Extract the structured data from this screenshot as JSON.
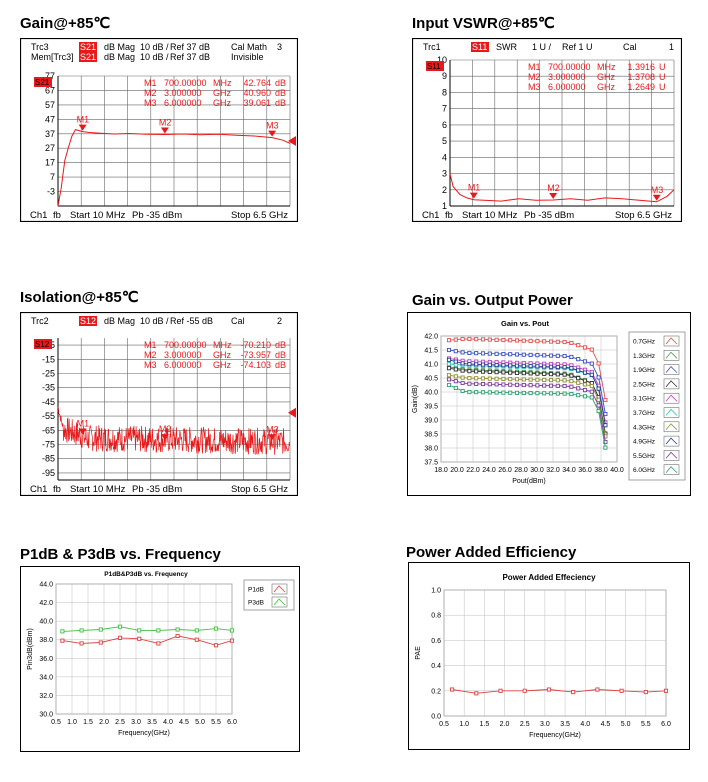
{
  "page_titles": {
    "gain": "Gain@+85℃",
    "vswr": "Input VSWR@+85℃",
    "iso": "Isolation@+85℃",
    "gvp": "Gain vs. Output Power",
    "p1db": "P1dB & P3dB vs. Frequency",
    "pae": "Power Added Efficiency"
  },
  "chart_data": [
    {
      "id": "gain",
      "type": "line",
      "header": [
        {
          "a": "Trc3",
          "b": "S21",
          "c": "dB Mag",
          "d": "10 dB /",
          "e": "Ref 37 dB",
          "f": "Cal Math",
          "g": "3"
        },
        {
          "a": "Mem[Trc3]",
          "b": "S21",
          "c": "dB Mag",
          "d": "10 dB /",
          "e": "Ref 37 dB",
          "f": "Invisible",
          "g": ""
        }
      ],
      "trace_label": "S21",
      "yticks": [
        "77",
        "67",
        "57",
        "47",
        "37",
        "27",
        "17",
        "7",
        "-3"
      ],
      "ylim": [
        -3,
        77
      ],
      "markers": [
        {
          "name": "M1",
          "freq": "700.00000",
          "unit": "MHz",
          "val": "42.764",
          "vunit": "dB",
          "x": 0.7,
          "y": 42.8
        },
        {
          "name": "M2",
          "freq": "3.000000",
          "unit": "GHz",
          "val": "40.960",
          "vunit": "dB",
          "x": 3.0,
          "y": 41.0
        },
        {
          "name": "M3",
          "freq": "6.000000",
          "unit": "GHz",
          "val": "39.061",
          "vunit": "dB",
          "x": 6.0,
          "y": 39.1
        }
      ],
      "ref_level": 37,
      "footer": {
        "ch": "Ch1",
        "fb": "fb",
        "start": "Start  10 MHz",
        "pb": "Pb  -35 dBm",
        "stop": "Stop  6.5 GHz"
      },
      "trace": [
        [
          0.01,
          -3
        ],
        [
          0.1,
          8
        ],
        [
          0.2,
          25
        ],
        [
          0.3,
          33
        ],
        [
          0.4,
          40
        ],
        [
          0.5,
          44
        ],
        [
          0.7,
          42.8
        ],
        [
          0.9,
          42.2
        ],
        [
          1.2,
          41.8
        ],
        [
          1.6,
          41.3
        ],
        [
          2.0,
          41.6
        ],
        [
          2.5,
          41.2
        ],
        [
          3.0,
          41.0
        ],
        [
          3.5,
          41.3
        ],
        [
          4.0,
          40.8
        ],
        [
          4.5,
          41.1
        ],
        [
          5.0,
          40.5
        ],
        [
          5.5,
          40.1
        ],
        [
          6.0,
          39.1
        ],
        [
          6.3,
          37.5
        ],
        [
          6.5,
          35.5
        ]
      ]
    },
    {
      "id": "vswr",
      "type": "line",
      "header": [
        {
          "a": "Trc1",
          "b": "S11",
          "c": "SWR",
          "d": "1 U /",
          "e": "Ref 1 U",
          "f": "Cal",
          "g": "1"
        }
      ],
      "trace_label": "S11",
      "yticks": [
        "10",
        "9",
        "8",
        "7",
        "6",
        "5",
        "4",
        "3",
        "2",
        "1"
      ],
      "ylim": [
        1,
        10
      ],
      "markers": [
        {
          "name": "M1",
          "freq": "700.00000",
          "unit": "MHz",
          "val": "1.3916",
          "vunit": "U",
          "x": 0.7,
          "y": 1.39
        },
        {
          "name": "M2",
          "freq": "3.000000",
          "unit": "GHz",
          "val": "1.3708",
          "vunit": "U",
          "x": 3.0,
          "y": 1.37
        },
        {
          "name": "M3",
          "freq": "6.000000",
          "unit": "GHz",
          "val": "1.2649",
          "vunit": "U",
          "x": 6.0,
          "y": 1.26
        }
      ],
      "footer": {
        "ch": "Ch1",
        "fb": "fb",
        "start": "Start  10 MHz",
        "pb": "Pb  -35 dBm",
        "stop": "Stop  6.5 GHz"
      },
      "trace": [
        [
          0.01,
          3.0
        ],
        [
          0.1,
          2.2
        ],
        [
          0.3,
          1.7
        ],
        [
          0.5,
          1.5
        ],
        [
          0.7,
          1.39
        ],
        [
          1.0,
          1.35
        ],
        [
          1.5,
          1.3
        ],
        [
          2.0,
          1.45
        ],
        [
          2.5,
          1.35
        ],
        [
          3.0,
          1.37
        ],
        [
          3.5,
          1.45
        ],
        [
          4.0,
          1.35
        ],
        [
          4.5,
          1.5
        ],
        [
          5.0,
          1.45
        ],
        [
          5.5,
          1.35
        ],
        [
          6.0,
          1.26
        ],
        [
          6.3,
          1.6
        ],
        [
          6.5,
          2.0
        ]
      ]
    },
    {
      "id": "iso",
      "type": "line",
      "header": [
        {
          "a": "Trc2",
          "b": "S12",
          "c": "dB Mag",
          "d": "10 dB /",
          "e": "Ref -55 dB",
          "f": "Cal",
          "g": "2"
        }
      ],
      "trace_label": "S12",
      "yticks": [
        "-5",
        "-15",
        "-25",
        "-35",
        "-45",
        "-55",
        "-65",
        "-75",
        "-85",
        "-95"
      ],
      "ylim": [
        -100,
        -5
      ],
      "markers": [
        {
          "name": "M1",
          "freq": "700.00000",
          "unit": "MHz",
          "val": "-70.210",
          "vunit": "dB",
          "x": 0.7,
          "y": -70.2
        },
        {
          "name": "M2",
          "freq": "3.000000",
          "unit": "GHz",
          "val": "-73.957",
          "vunit": "dB",
          "x": 3.0,
          "y": -74.0
        },
        {
          "name": "M3",
          "freq": "6.000000",
          "unit": "GHz",
          "val": "-74.103",
          "vunit": "dB",
          "x": 6.0,
          "y": -74.1
        }
      ],
      "ref_level": -55,
      "footer": {
        "ch": "Ch1",
        "fb": "fb",
        "start": "Start  10 MHz",
        "pb": "Pb  -35 dBm",
        "stop": "Stop  6.5 GHz"
      }
    },
    {
      "id": "gvp",
      "type": "line",
      "title": "Gain vs. Pout",
      "xlabel": "Pout(dBm)",
      "ylabel": "Gain(dB)",
      "xticks": [
        18.0,
        20.0,
        22.0,
        24.0,
        26.0,
        28.0,
        30.0,
        32.0,
        34.0,
        36.0,
        38.0,
        40.0
      ],
      "yticks": [
        37.5,
        38.0,
        38.5,
        39.0,
        39.5,
        40.0,
        40.5,
        41.0,
        41.5,
        42.0
      ],
      "xlim": [
        18,
        40
      ],
      "ylim": [
        37.5,
        42.0
      ],
      "legend": "right",
      "series": [
        {
          "name": "0.7GHz",
          "color": "#e05050",
          "y0": 41.85,
          "mid": 41.9,
          "end": 41.5
        },
        {
          "name": "1.3GHz",
          "color": "#4a9a4a",
          "y0": 40.9,
          "mid": 40.8,
          "end": 40.3
        },
        {
          "name": "1.9GHz",
          "color": "#3a4fc0",
          "y0": 41.5,
          "mid": 41.4,
          "end": 41.0
        },
        {
          "name": "2.5GHz",
          "color": "#303030",
          "y0": 40.85,
          "mid": 40.75,
          "end": 40.3
        },
        {
          "name": "3.1GHz",
          "color": "#c040c0",
          "y0": 41.2,
          "mid": 41.1,
          "end": 40.7
        },
        {
          "name": "3.7GHz",
          "color": "#30c0c0",
          "y0": 41.0,
          "mid": 40.95,
          "end": 40.6
        },
        {
          "name": "4.3GHz",
          "color": "#909030",
          "y0": 40.6,
          "mid": 40.5,
          "end": 40.2
        },
        {
          "name": "4.9GHz",
          "color": "#2a3a90",
          "y0": 41.15,
          "mid": 41.0,
          "end": 40.6
        },
        {
          "name": "5.5GHz",
          "color": "#7a3aa0",
          "y0": 40.45,
          "mid": 40.3,
          "end": 40.0
        },
        {
          "name": "6.0GHz",
          "color": "#2aa070",
          "y0": 40.25,
          "mid": 40.0,
          "end": 39.8
        }
      ]
    },
    {
      "id": "p1db",
      "type": "line",
      "title": "P1dB&P3dB vs. Frequency",
      "xlabel": "Frequency(GHz)",
      "ylabel": "Pin3dB(dBm)",
      "xticks": [
        0.5,
        1.0,
        1.5,
        2.0,
        2.5,
        3.0,
        3.5,
        4.0,
        4.5,
        5.0,
        5.5,
        6.0
      ],
      "yticks": [
        30.0,
        32.0,
        34.0,
        36.0,
        38.0,
        40.0,
        42.0,
        44.0
      ],
      "xlim": [
        0.5,
        6.0
      ],
      "ylim": [
        30.0,
        44.0
      ],
      "legend": "top-right",
      "x": [
        0.7,
        1.3,
        1.9,
        2.5,
        3.1,
        3.7,
        4.3,
        4.9,
        5.5,
        6.0
      ],
      "series": [
        {
          "name": "P1dB",
          "color": "#e04040",
          "values": [
            37.9,
            37.6,
            37.7,
            38.2,
            38.1,
            37.6,
            38.4,
            38.0,
            37.4,
            37.9
          ]
        },
        {
          "name": "P3dB",
          "color": "#40c040",
          "values": [
            38.9,
            39.0,
            39.1,
            39.4,
            39.0,
            39.0,
            39.1,
            39.0,
            39.2,
            39.0
          ]
        }
      ]
    },
    {
      "id": "pae",
      "type": "line",
      "title": "Power Added Effeciency",
      "xlabel": "Frequency(GHz)",
      "ylabel": "PAE",
      "xticks": [
        0.5,
        1.0,
        1.5,
        2.0,
        2.5,
        3.0,
        3.5,
        4.0,
        4.5,
        5.0,
        5.5,
        6.0
      ],
      "yticks": [
        0.0,
        0.2,
        0.4,
        0.6,
        0.8,
        1.0
      ],
      "xlim": [
        0.5,
        6.0
      ],
      "ylim": [
        0.0,
        1.0
      ],
      "x": [
        0.7,
        1.3,
        1.9,
        2.5,
        3.1,
        3.7,
        4.3,
        4.9,
        5.5,
        6.0
      ],
      "series": [
        {
          "name": "PAE",
          "color": "#e04040",
          "values": [
            0.21,
            0.18,
            0.2,
            0.2,
            0.21,
            0.19,
            0.21,
            0.2,
            0.19,
            0.2
          ]
        }
      ]
    }
  ]
}
